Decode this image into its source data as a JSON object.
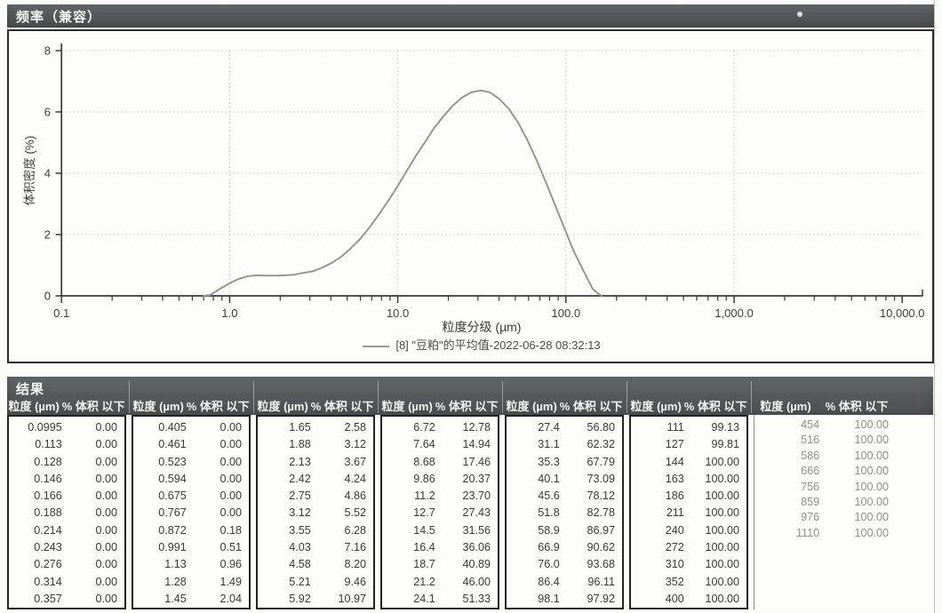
{
  "frequency_panel": {
    "title": "频率（兼容）"
  },
  "chart_data": {
    "type": "line",
    "x_scale": "log",
    "xlim": [
      0.1,
      10000
    ],
    "ylim": [
      0,
      8
    ],
    "xlabel": "粒度分级 (µm)",
    "ylabel": "体积密度 (%)",
    "x_tick_values": [
      0.1,
      1,
      10,
      100,
      1000,
      10000
    ],
    "x_tick_labels": [
      "0.1",
      "1.0",
      "10.0",
      "100.0",
      "1,000.0",
      "10,000.0"
    ],
    "y_ticks": [
      0,
      2,
      4,
      6,
      8
    ],
    "grid": true,
    "legend_position": "bottom",
    "legend_label": "[8] \"豆粕\"的平均值-2022-06-28 08:32:13",
    "series": [
      {
        "name": "[8] \"豆粕\"的平均值-2022-06-28 08:32:13",
        "color": "#97988f",
        "points": [
          [
            0.7,
            0.0
          ],
          [
            0.767,
            0.03
          ],
          [
            0.872,
            0.22
          ],
          [
            0.991,
            0.4
          ],
          [
            1.13,
            0.55
          ],
          [
            1.28,
            0.64
          ],
          [
            1.45,
            0.67
          ],
          [
            1.65,
            0.66
          ],
          [
            1.88,
            0.66
          ],
          [
            2.13,
            0.67
          ],
          [
            2.42,
            0.69
          ],
          [
            2.75,
            0.75
          ],
          [
            3.12,
            0.8
          ],
          [
            3.55,
            0.92
          ],
          [
            4.03,
            1.07
          ],
          [
            4.58,
            1.26
          ],
          [
            5.21,
            1.53
          ],
          [
            5.92,
            1.83
          ],
          [
            6.72,
            2.2
          ],
          [
            7.64,
            2.62
          ],
          [
            8.68,
            3.06
          ],
          [
            9.86,
            3.53
          ],
          [
            11.2,
            4.04
          ],
          [
            12.7,
            4.53
          ],
          [
            14.5,
            5.01
          ],
          [
            16.4,
            5.46
          ],
          [
            18.7,
            5.86
          ],
          [
            21.2,
            6.2
          ],
          [
            24.1,
            6.47
          ],
          [
            27.4,
            6.64
          ],
          [
            31.1,
            6.7
          ],
          [
            35.3,
            6.64
          ],
          [
            40.1,
            6.43
          ],
          [
            45.6,
            6.11
          ],
          [
            51.8,
            5.66
          ],
          [
            58.9,
            5.09
          ],
          [
            66.9,
            4.43
          ],
          [
            76.0,
            3.71
          ],
          [
            86.4,
            2.95
          ],
          [
            98.1,
            2.2
          ],
          [
            111,
            1.47
          ],
          [
            127,
            0.83
          ],
          [
            144,
            0.23
          ],
          [
            152,
            0.12
          ],
          [
            163,
            0.0
          ]
        ]
      }
    ]
  },
  "results": {
    "section_title": "结果",
    "col_size": "粒度 (µm)",
    "col_pct": "% 体积 以下",
    "groups": [
      {
        "rows": [
          [
            "0.0995",
            "0.00"
          ],
          [
            "0.113",
            "0.00"
          ],
          [
            "0.128",
            "0.00"
          ],
          [
            "0.146",
            "0.00"
          ],
          [
            "0.166",
            "0.00"
          ],
          [
            "0.188",
            "0.00"
          ],
          [
            "0.214",
            "0.00"
          ],
          [
            "0.243",
            "0.00"
          ],
          [
            "0.276",
            "0.00"
          ],
          [
            "0.314",
            "0.00"
          ],
          [
            "0.357",
            "0.00"
          ]
        ]
      },
      {
        "rows": [
          [
            "0.405",
            "0.00"
          ],
          [
            "0.461",
            "0.00"
          ],
          [
            "0.523",
            "0.00"
          ],
          [
            "0.594",
            "0.00"
          ],
          [
            "0.675",
            "0.00"
          ],
          [
            "0.767",
            "0.00"
          ],
          [
            "0.872",
            "0.18"
          ],
          [
            "0.991",
            "0.51"
          ],
          [
            "1.13",
            "0.96"
          ],
          [
            "1.28",
            "1.49"
          ],
          [
            "1.45",
            "2.04"
          ]
        ]
      },
      {
        "rows": [
          [
            "1.65",
            "2.58"
          ],
          [
            "1.88",
            "3.12"
          ],
          [
            "2.13",
            "3.67"
          ],
          [
            "2.42",
            "4.24"
          ],
          [
            "2.75",
            "4.86"
          ],
          [
            "3.12",
            "5.52"
          ],
          [
            "3.55",
            "6.28"
          ],
          [
            "4.03",
            "7.16"
          ],
          [
            "4.58",
            "8.20"
          ],
          [
            "5.21",
            "9.46"
          ],
          [
            "5.92",
            "10.97"
          ]
        ]
      },
      {
        "rows": [
          [
            "6.72",
            "12.78"
          ],
          [
            "7.64",
            "14.94"
          ],
          [
            "8.68",
            "17.46"
          ],
          [
            "9.86",
            "20.37"
          ],
          [
            "11.2",
            "23.70"
          ],
          [
            "12.7",
            "27.43"
          ],
          [
            "14.5",
            "31.56"
          ],
          [
            "16.4",
            "36.06"
          ],
          [
            "18.7",
            "40.89"
          ],
          [
            "21.2",
            "46.00"
          ],
          [
            "24.1",
            "51.33"
          ]
        ]
      },
      {
        "rows": [
          [
            "27.4",
            "56.80"
          ],
          [
            "31.1",
            "62.32"
          ],
          [
            "35.3",
            "67.79"
          ],
          [
            "40.1",
            "73.09"
          ],
          [
            "45.6",
            "78.12"
          ],
          [
            "51.8",
            "82.78"
          ],
          [
            "58.9",
            "86.97"
          ],
          [
            "66.9",
            "90.62"
          ],
          [
            "76.0",
            "93.68"
          ],
          [
            "86.4",
            "96.11"
          ],
          [
            "98.1",
            "97.92"
          ]
        ]
      },
      {
        "rows": [
          [
            "111",
            "99.13"
          ],
          [
            "127",
            "99.81"
          ],
          [
            "144",
            "100.00"
          ],
          [
            "163",
            "100.00"
          ],
          [
            "186",
            "100.00"
          ],
          [
            "211",
            "100.00"
          ],
          [
            "240",
            "100.00"
          ],
          [
            "272",
            "100.00"
          ],
          [
            "310",
            "100.00"
          ],
          [
            "352",
            "100.00"
          ],
          [
            "400",
            "100.00"
          ]
        ]
      },
      {
        "rows": [
          [
            "454",
            "100.00"
          ],
          [
            "516",
            "100.00"
          ],
          [
            "586",
            "100.00"
          ],
          [
            "666",
            "100.00"
          ],
          [
            "756",
            "100.00"
          ],
          [
            "859",
            "100.00"
          ],
          [
            "976",
            "100.00"
          ],
          [
            "1110",
            "100.00"
          ]
        ]
      }
    ]
  },
  "colors": {
    "band_bg": "#57585a",
    "band_text": "#f4f4f2",
    "curve": "#97988f",
    "axis": "#3a3a3a",
    "grid": "#c6c6c2",
    "table_border": "#242424"
  }
}
